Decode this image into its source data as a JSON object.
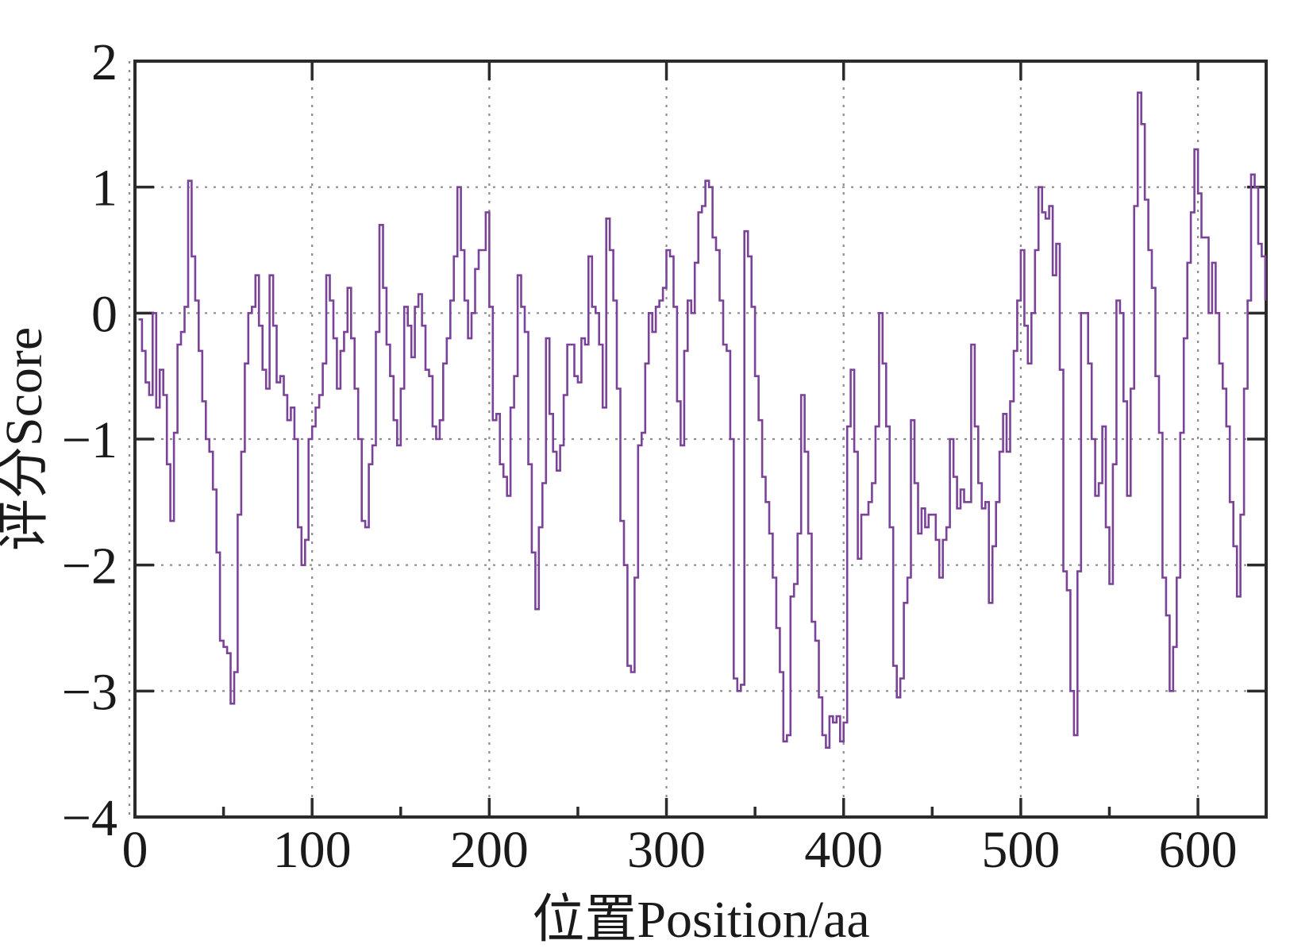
{
  "figure": {
    "background": "#ffffff"
  },
  "colors": {
    "line": "#7a4398",
    "frame": "#2b2b2b",
    "grid": "#8c8c8c",
    "text": "#1a1a1a"
  },
  "chart_data": {
    "type": "line",
    "line_style": "step",
    "title": "",
    "xlabel": "位置Position/aa",
    "ylabel": "评分Score",
    "xlim": [
      0,
      638.5
    ],
    "ylim": [
      -4,
      2
    ],
    "grid": "dotted",
    "legend_position": "none",
    "x_ticks": [
      0,
      100,
      200,
      300,
      400,
      500,
      600
    ],
    "x_tick_labels": [
      "0",
      "100",
      "200",
      "300",
      "400",
      "500",
      "600"
    ],
    "x_minor_ticks": [
      50,
      150,
      250,
      350,
      450,
      550
    ],
    "y_ticks": [
      2,
      1,
      0,
      -1,
      -2,
      -3,
      -4
    ],
    "y_tick_labels": [
      "2",
      "1",
      "0",
      "−1",
      "−2",
      "−3",
      "−4"
    ],
    "x_gridlines": [
      0,
      100,
      200,
      300,
      400,
      500,
      600
    ],
    "y_gridlines": [
      1,
      0,
      -1,
      -2,
      -3
    ],
    "series": [
      {
        "name": "score",
        "x_start": 2,
        "x_step": 2,
        "values": [
          -0.05,
          -0.3,
          -0.55,
          -0.65,
          0.0,
          -0.75,
          -0.45,
          -0.65,
          -1.2,
          -1.65,
          -0.95,
          -0.25,
          -0.15,
          0.05,
          1.05,
          0.45,
          0.1,
          -0.3,
          -0.7,
          -1.0,
          -1.1,
          -1.4,
          -1.9,
          -2.6,
          -2.65,
          -2.7,
          -3.1,
          -2.85,
          -1.6,
          -1.1,
          -0.4,
          0.0,
          0.05,
          0.3,
          -0.1,
          -0.45,
          -0.6,
          0.3,
          -0.1,
          -0.55,
          -0.5,
          -0.65,
          -0.85,
          -0.75,
          -1.0,
          -1.7,
          -2.0,
          -1.8,
          -1.0,
          -0.9,
          -0.75,
          -0.65,
          -0.4,
          0.3,
          0.1,
          -0.2,
          -0.6,
          -0.3,
          -0.15,
          0.2,
          -0.2,
          -0.6,
          -1.0,
          -1.65,
          -1.7,
          -1.2,
          -1.05,
          -0.15,
          0.7,
          0.2,
          -0.25,
          -0.5,
          -0.85,
          -1.05,
          -0.6,
          0.05,
          -0.1,
          -0.35,
          0.05,
          0.15,
          -0.1,
          -0.45,
          -0.5,
          -0.9,
          -1.0,
          -0.85,
          -0.4,
          -0.2,
          0.1,
          0.45,
          1.0,
          0.5,
          0.1,
          -0.2,
          0.0,
          0.35,
          0.5,
          0.5,
          0.8,
          0.05,
          -0.85,
          -0.8,
          -1.2,
          -1.3,
          -1.45,
          -0.75,
          -0.5,
          0.3,
          0.05,
          -0.15,
          -1.2,
          -1.9,
          -2.35,
          -1.7,
          -1.35,
          -0.2,
          -0.8,
          -1.1,
          -1.25,
          -1.05,
          -0.65,
          -0.25,
          -0.25,
          -0.5,
          -0.55,
          -0.2,
          -0.25,
          0.45,
          0.05,
          0.0,
          -0.25,
          -0.75,
          0.75,
          0.5,
          0.1,
          -0.6,
          -1.65,
          -2.0,
          -2.8,
          -2.85,
          -2.1,
          -1.05,
          -0.95,
          -0.4,
          0.0,
          -0.15,
          0.05,
          0.1,
          0.2,
          0.5,
          0.45,
          0.05,
          -0.7,
          -1.05,
          -0.3,
          0.1,
          0.0,
          0.4,
          0.8,
          0.85,
          1.05,
          1.0,
          0.6,
          0.5,
          0.1,
          -0.25,
          -0.3,
          -1.0,
          -2.9,
          -3.0,
          -2.95,
          0.65,
          0.45,
          0.05,
          -0.5,
          -0.85,
          -1.3,
          -1.5,
          -1.75,
          -2.1,
          -2.5,
          -2.85,
          -3.4,
          -3.35,
          -2.25,
          -2.15,
          -1.75,
          -0.65,
          -1.1,
          -1.75,
          -2.45,
          -2.6,
          -3.05,
          -3.35,
          -3.45,
          -3.2,
          -3.25,
          -3.2,
          -3.4,
          -3.25,
          -0.9,
          -0.45,
          -1.1,
          -1.95,
          -1.6,
          -1.6,
          -1.5,
          -1.35,
          -0.9,
          0.0,
          -0.4,
          -0.9,
          -1.7,
          -2.8,
          -3.05,
          -2.9,
          -2.3,
          -2.1,
          -0.85,
          -1.35,
          -1.75,
          -1.55,
          -1.7,
          -1.6,
          -1.6,
          -1.8,
          -2.1,
          -1.8,
          -1.7,
          -1.0,
          -1.3,
          -1.55,
          -1.4,
          -1.5,
          -1.5,
          -0.25,
          -0.9,
          -1.35,
          -1.55,
          -1.5,
          -2.3,
          -1.85,
          -1.5,
          -1.1,
          -0.8,
          -1.1,
          -0.7,
          -0.3,
          0.1,
          0.5,
          -0.1,
          -0.4,
          0.0,
          0.5,
          1.0,
          0.8,
          0.75,
          0.85,
          0.3,
          0.55,
          -0.45,
          -2.05,
          -2.2,
          -3.0,
          -3.35,
          -2.05,
          0.0,
          0.0,
          -0.4,
          -1.0,
          -1.45,
          -1.35,
          -0.9,
          -1.7,
          -2.15,
          -1.2,
          0.1,
          0.0,
          -0.7,
          -1.45,
          -0.6,
          0.85,
          1.75,
          1.5,
          0.9,
          0.5,
          0.2,
          -0.5,
          -0.95,
          -2.1,
          -2.4,
          -3.0,
          -2.65,
          -2.1,
          -0.95,
          -0.2,
          0.4,
          0.8,
          1.3,
          0.95,
          0.6,
          0.6,
          0.0,
          0.4,
          0.0,
          -0.4,
          -0.6,
          -0.9,
          -1.5,
          -1.85,
          -2.25,
          -1.6,
          -0.6,
          0.1,
          1.1,
          1.0,
          0.55,
          0.45,
          0.1
        ]
      }
    ]
  }
}
